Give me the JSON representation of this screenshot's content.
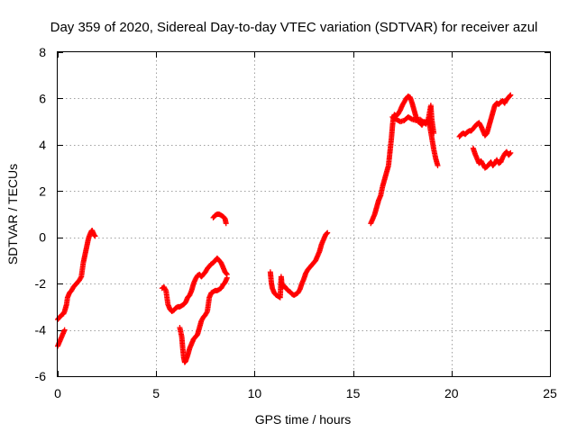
{
  "chart_data": {
    "type": "scatter",
    "title": "Day 359 of 2020, Sidereal Day-to-day VTEC variation (SDTVAR) for receiver azul",
    "xlabel": "GPS time / hours",
    "ylabel": "SDTVAR / TECUs",
    "xlim": [
      0,
      25
    ],
    "ylim": [
      -6,
      8
    ],
    "xticks": [
      "0",
      "5",
      "10",
      "15",
      "20",
      "25"
    ],
    "yticks": [
      "-6",
      "-4",
      "-2",
      "0",
      "2",
      "4",
      "6",
      "8"
    ],
    "grid": true,
    "marker": "+",
    "color": "#ff0000",
    "segments": [
      [
        [
          0.0,
          -4.7
        ],
        [
          0.1,
          -4.5
        ],
        [
          0.2,
          -4.3
        ],
        [
          0.3,
          -4.1
        ],
        [
          0.35,
          -4.0
        ]
      ],
      [
        [
          0.0,
          -3.55
        ],
        [
          0.1,
          -3.45
        ],
        [
          0.2,
          -3.35
        ],
        [
          0.3,
          -3.3
        ],
        [
          0.35,
          -3.2
        ],
        [
          0.45,
          -2.9
        ],
        [
          0.5,
          -2.6
        ],
        [
          0.6,
          -2.4
        ],
        [
          0.7,
          -2.3
        ],
        [
          0.8,
          -2.15
        ],
        [
          0.9,
          -2.05
        ],
        [
          1.0,
          -1.95
        ],
        [
          1.1,
          -1.85
        ],
        [
          1.2,
          -1.7
        ],
        [
          1.25,
          -1.4
        ],
        [
          1.3,
          -1.1
        ],
        [
          1.35,
          -0.9
        ],
        [
          1.4,
          -0.7
        ],
        [
          1.45,
          -0.5
        ],
        [
          1.5,
          -0.3
        ],
        [
          1.55,
          -0.1
        ],
        [
          1.6,
          0.05
        ],
        [
          1.65,
          0.15
        ],
        [
          1.7,
          0.25
        ],
        [
          1.75,
          0.3
        ],
        [
          1.8,
          0.2
        ],
        [
          1.85,
          0.1
        ],
        [
          1.9,
          0.05
        ]
      ],
      [
        [
          5.3,
          -2.2
        ],
        [
          5.4,
          -2.15
        ],
        [
          5.5,
          -2.3
        ],
        [
          5.55,
          -2.6
        ],
        [
          5.6,
          -2.9
        ],
        [
          5.7,
          -3.1
        ],
        [
          5.8,
          -3.2
        ],
        [
          5.9,
          -3.15
        ],
        [
          6.0,
          -3.05
        ],
        [
          6.1,
          -3.0
        ],
        [
          6.2,
          -3.0
        ],
        [
          6.3,
          -2.95
        ],
        [
          6.4,
          -2.9
        ],
        [
          6.5,
          -2.8
        ],
        [
          6.6,
          -2.6
        ],
        [
          6.7,
          -2.5
        ],
        [
          6.8,
          -2.3
        ],
        [
          6.9,
          -2.0
        ],
        [
          7.0,
          -1.8
        ],
        [
          7.1,
          -1.65
        ],
        [
          7.2,
          -1.6
        ],
        [
          7.3,
          -1.7
        ],
        [
          7.4,
          -1.6
        ],
        [
          7.5,
          -1.5
        ],
        [
          7.6,
          -1.35
        ],
        [
          7.7,
          -1.25
        ],
        [
          7.8,
          -1.15
        ],
        [
          7.9,
          -1.1
        ],
        [
          8.0,
          -1.0
        ],
        [
          8.1,
          -0.9
        ],
        [
          8.2,
          -1.0
        ],
        [
          8.3,
          -1.1
        ],
        [
          8.4,
          -1.3
        ],
        [
          8.5,
          -1.5
        ],
        [
          8.6,
          -1.6
        ]
      ],
      [
        [
          6.2,
          -3.9
        ],
        [
          6.3,
          -4.3
        ],
        [
          6.35,
          -4.8
        ],
        [
          6.4,
          -5.2
        ],
        [
          6.45,
          -5.4
        ],
        [
          6.5,
          -5.35
        ],
        [
          6.6,
          -5.1
        ],
        [
          6.7,
          -4.8
        ],
        [
          6.8,
          -4.6
        ],
        [
          6.9,
          -4.4
        ],
        [
          7.0,
          -4.3
        ],
        [
          7.1,
          -4.2
        ],
        [
          7.2,
          -3.9
        ],
        [
          7.3,
          -3.6
        ],
        [
          7.4,
          -3.45
        ],
        [
          7.5,
          -3.35
        ],
        [
          7.6,
          -3.2
        ],
        [
          7.65,
          -2.9
        ],
        [
          7.7,
          -2.6
        ],
        [
          7.8,
          -2.4
        ],
        [
          7.9,
          -2.35
        ],
        [
          8.0,
          -2.3
        ],
        [
          8.1,
          -2.3
        ],
        [
          8.2,
          -2.25
        ],
        [
          8.3,
          -2.2
        ],
        [
          8.4,
          -2.05
        ],
        [
          8.5,
          -1.95
        ],
        [
          8.6,
          -1.75
        ]
      ],
      [
        [
          7.9,
          0.85
        ],
        [
          8.0,
          0.95
        ],
        [
          8.1,
          1.0
        ],
        [
          8.2,
          1.0
        ],
        [
          8.3,
          0.95
        ],
        [
          8.4,
          0.9
        ],
        [
          8.5,
          0.8
        ],
        [
          8.55,
          0.6
        ]
      ],
      [
        [
          10.8,
          -1.5
        ],
        [
          10.85,
          -1.95
        ],
        [
          10.9,
          -2.2
        ],
        [
          11.0,
          -2.4
        ],
        [
          11.1,
          -2.5
        ],
        [
          11.2,
          -2.55
        ],
        [
          11.3,
          -2.6
        ],
        [
          11.35,
          -1.7
        ],
        [
          11.4,
          -2.15
        ],
        [
          11.5,
          -2.1
        ],
        [
          11.6,
          -2.2
        ],
        [
          11.7,
          -2.3
        ],
        [
          11.8,
          -2.35
        ],
        [
          11.9,
          -2.45
        ],
        [
          12.0,
          -2.5
        ],
        [
          12.1,
          -2.45
        ],
        [
          12.2,
          -2.4
        ],
        [
          12.3,
          -2.25
        ],
        [
          12.4,
          -2.0
        ],
        [
          12.5,
          -1.8
        ],
        [
          12.6,
          -1.55
        ],
        [
          12.7,
          -1.4
        ],
        [
          12.8,
          -1.3
        ],
        [
          12.9,
          -1.2
        ],
        [
          13.0,
          -1.1
        ],
        [
          13.1,
          -1.0
        ],
        [
          13.2,
          -0.8
        ],
        [
          13.3,
          -0.6
        ],
        [
          13.4,
          -0.3
        ],
        [
          13.5,
          -0.1
        ],
        [
          13.6,
          0.1
        ],
        [
          13.7,
          0.2
        ]
      ],
      [
        [
          15.9,
          0.6
        ],
        [
          16.0,
          0.8
        ],
        [
          16.1,
          1.0
        ],
        [
          16.2,
          1.3
        ],
        [
          16.3,
          1.6
        ],
        [
          16.4,
          1.8
        ],
        [
          16.5,
          2.2
        ],
        [
          16.6,
          2.5
        ],
        [
          16.7,
          2.8
        ],
        [
          16.8,
          3.1
        ],
        [
          16.85,
          3.5
        ],
        [
          16.9,
          3.9
        ],
        [
          16.95,
          4.3
        ],
        [
          17.0,
          4.8
        ],
        [
          17.05,
          5.2
        ],
        [
          17.1,
          5.3
        ],
        [
          17.2,
          5.25
        ],
        [
          17.3,
          5.35
        ],
        [
          17.4,
          5.5
        ],
        [
          17.5,
          5.7
        ],
        [
          17.6,
          5.85
        ],
        [
          17.7,
          6.0
        ],
        [
          17.8,
          6.1
        ],
        [
          17.9,
          6.05
        ],
        [
          18.0,
          5.8
        ],
        [
          18.1,
          5.5
        ],
        [
          18.2,
          5.2
        ],
        [
          18.3,
          5.0
        ],
        [
          18.4,
          4.95
        ],
        [
          18.5,
          4.85
        ],
        [
          18.6,
          5.0
        ],
        [
          18.7,
          4.9
        ],
        [
          18.8,
          5.1
        ],
        [
          18.9,
          4.8
        ],
        [
          19.0,
          4.3
        ],
        [
          19.1,
          3.8
        ],
        [
          19.2,
          3.4
        ],
        [
          19.3,
          3.1
        ]
      ],
      [
        [
          17.0,
          5.2
        ],
        [
          17.2,
          5.1
        ],
        [
          17.4,
          5.0
        ],
        [
          17.6,
          5.05
        ],
        [
          17.8,
          5.2
        ],
        [
          18.0,
          5.1
        ],
        [
          18.2,
          5.05
        ],
        [
          18.4,
          5.1
        ],
        [
          18.6,
          4.95
        ],
        [
          18.8,
          5.0
        ],
        [
          18.95,
          5.7
        ],
        [
          19.0,
          5.1
        ],
        [
          19.1,
          4.5
        ]
      ],
      [
        [
          20.4,
          4.35
        ],
        [
          20.5,
          4.45
        ],
        [
          20.6,
          4.5
        ],
        [
          20.7,
          4.45
        ],
        [
          20.8,
          4.55
        ],
        [
          20.9,
          4.6
        ],
        [
          21.0,
          4.6
        ],
        [
          21.1,
          4.7
        ],
        [
          21.2,
          4.8
        ],
        [
          21.3,
          4.9
        ],
        [
          21.4,
          4.95
        ],
        [
          21.5,
          4.8
        ],
        [
          21.6,
          4.6
        ],
        [
          21.7,
          4.4
        ],
        [
          21.8,
          4.5
        ],
        [
          21.9,
          4.8
        ],
        [
          22.0,
          5.1
        ],
        [
          22.1,
          5.4
        ],
        [
          22.2,
          5.7
        ],
        [
          22.3,
          5.8
        ],
        [
          22.4,
          5.75
        ],
        [
          22.5,
          5.85
        ],
        [
          22.6,
          5.9
        ],
        [
          22.7,
          5.8
        ],
        [
          22.8,
          5.95
        ],
        [
          22.9,
          6.05
        ],
        [
          23.0,
          6.15
        ]
      ],
      [
        [
          21.1,
          3.85
        ],
        [
          21.2,
          3.6
        ],
        [
          21.3,
          3.4
        ],
        [
          21.4,
          3.2
        ],
        [
          21.5,
          3.3
        ],
        [
          21.6,
          3.15
        ],
        [
          21.7,
          3.0
        ],
        [
          21.8,
          3.05
        ],
        [
          21.9,
          3.15
        ],
        [
          22.0,
          3.25
        ],
        [
          22.1,
          3.1
        ],
        [
          22.2,
          3.2
        ],
        [
          22.3,
          3.35
        ],
        [
          22.4,
          3.2
        ],
        [
          22.5,
          3.25
        ],
        [
          22.6,
          3.45
        ],
        [
          22.7,
          3.6
        ],
        [
          22.8,
          3.7
        ],
        [
          22.9,
          3.55
        ],
        [
          23.0,
          3.65
        ]
      ]
    ]
  }
}
